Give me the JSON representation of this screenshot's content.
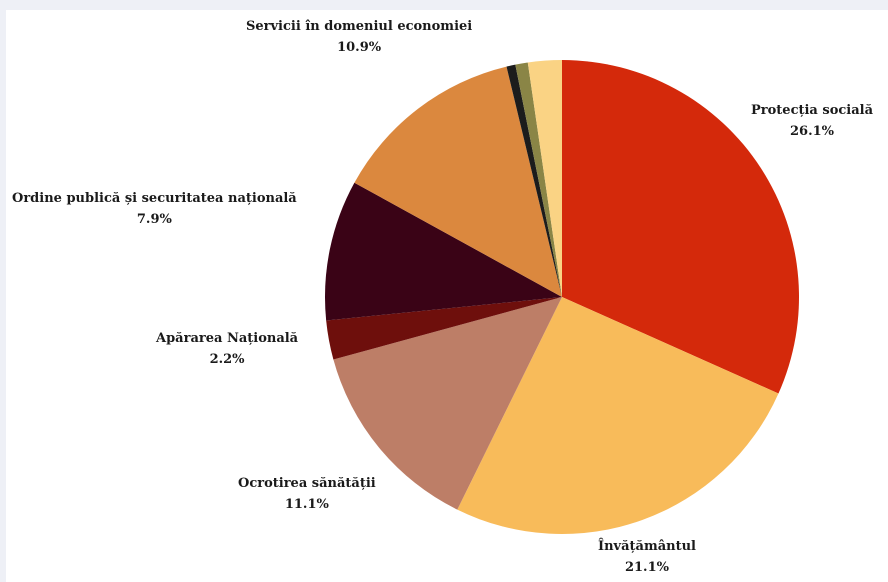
{
  "chart_data": {
    "type": "pie",
    "title": "",
    "start_angle_deg": 0,
    "direction": "clockwise",
    "slices": [
      {
        "label": "Protecția socială",
        "value_label": "26.1%",
        "value": 26.1,
        "color": "#d4290b"
      },
      {
        "label": "Învățământul",
        "value_label": "21.1%",
        "value": 21.1,
        "color": "#f8bb5a"
      },
      {
        "label": "Ocrotirea sănătății",
        "value_label": "11.1%",
        "value": 11.1,
        "color": "#bd7e67"
      },
      {
        "label": "Apărarea Națională",
        "value_label": "2.2%",
        "value": 2.2,
        "color": "#6e0f0c"
      },
      {
        "label": "Ordine publică și securitatea națională",
        "value_label": "7.9%",
        "value": 7.9,
        "color": "#3a0316"
      },
      {
        "label": "Servicii în domeniul economiei",
        "value_label": "10.9%",
        "value": 10.9,
        "color": "#db883e"
      },
      {
        "label": "",
        "value_label": "",
        "value": 0.5,
        "color": "#1c1c1c"
      },
      {
        "label": "",
        "value_label": "",
        "value": 0.7,
        "color": "#8a8546"
      },
      {
        "label": "",
        "value_label": "",
        "value": 1.9,
        "color": "#fad384"
      }
    ]
  }
}
